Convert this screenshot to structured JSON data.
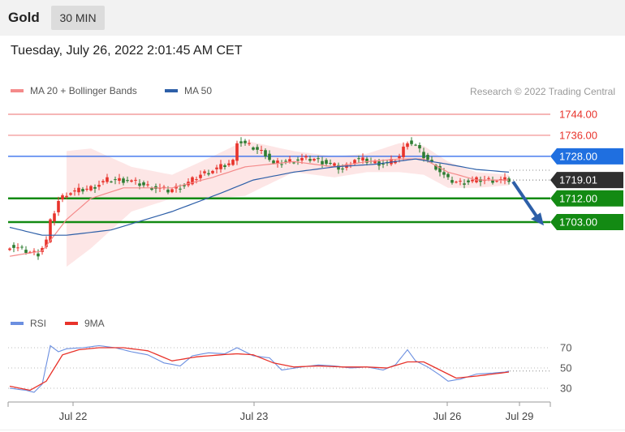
{
  "header": {
    "title": "Gold",
    "timeframe": "30 MIN"
  },
  "timestamp": "Tuesday, July 26, 2022 2:01:45 AM CET",
  "legend": {
    "ma20": {
      "label": "MA 20 + Bollinger Bands",
      "color": "#f48a8a"
    },
    "ma50": {
      "label": "MA 50",
      "color": "#2d5fa8"
    }
  },
  "copyright": "Research © 2022 Trading Central",
  "rsi_legend": {
    "rsi": {
      "label": "RSI",
      "color": "#6b8fe0"
    },
    "ma9": {
      "label": "9MA",
      "color": "#e8332b"
    }
  },
  "colors": {
    "up": "#e8332b",
    "down": "#2e7d32",
    "resistance": "#f08a8a",
    "support": "#138a13",
    "pivot": "#2563eb",
    "current": "#333333",
    "arrow": "#2d5fa8"
  },
  "levels": [
    {
      "label": "1744.00",
      "value": 1744.0,
      "type": "resistance"
    },
    {
      "label": "1736.00",
      "value": 1736.0,
      "type": "resistance"
    },
    {
      "label": "1728.00",
      "value": 1728.0,
      "type": "pivot"
    },
    {
      "label": "1719.01",
      "value": 1719.01,
      "type": "current"
    },
    {
      "label": "1712.00",
      "value": 1712.0,
      "type": "support"
    },
    {
      "label": "1703.00",
      "value": 1703.0,
      "type": "support"
    }
  ],
  "rsi_ticks": [
    "70",
    "50",
    "30"
  ],
  "chart_data": {
    "type": "candlestick",
    "title": "Gold",
    "timeframe": "30 MIN",
    "x_tick_labels": [
      "Jul 22",
      "Jul 23",
      "Jul 26",
      "Jul 29"
    ],
    "price_range": [
      1683,
      1748
    ],
    "close_anchors": [
      [
        0,
        1694
      ],
      [
        4,
        1692
      ],
      [
        7,
        1691
      ],
      [
        9,
        1696
      ],
      [
        10,
        1703
      ],
      [
        12,
        1711
      ],
      [
        14,
        1714
      ],
      [
        17,
        1715
      ],
      [
        20,
        1716
      ],
      [
        24,
        1719
      ],
      [
        29,
        1719
      ],
      [
        33,
        1717
      ],
      [
        39,
        1715
      ],
      [
        43,
        1717
      ],
      [
        47,
        1721
      ],
      [
        52,
        1724
      ],
      [
        55,
        1726
      ],
      [
        56,
        1734
      ],
      [
        59,
        1732
      ],
      [
        63,
        1729
      ],
      [
        65,
        1725
      ],
      [
        68,
        1726
      ],
      [
        72,
        1727
      ],
      [
        75,
        1727
      ],
      [
        79,
        1725
      ],
      [
        82,
        1723
      ],
      [
        85,
        1727
      ],
      [
        89,
        1726
      ],
      [
        93,
        1725
      ],
      [
        96,
        1728
      ],
      [
        98,
        1734
      ],
      [
        100,
        1732
      ],
      [
        102,
        1728
      ],
      [
        105,
        1724
      ],
      [
        108,
        1719
      ],
      [
        111,
        1718
      ],
      [
        115,
        1719
      ],
      [
        118,
        1719
      ],
      [
        121,
        1719
      ],
      [
        123,
        1719
      ]
    ],
    "ma20_anchors": [
      [
        0,
        1690
      ],
      [
        8,
        1692
      ],
      [
        14,
        1704
      ],
      [
        20,
        1712
      ],
      [
        28,
        1716
      ],
      [
        40,
        1716
      ],
      [
        50,
        1720
      ],
      [
        58,
        1724
      ],
      [
        70,
        1726
      ],
      [
        80,
        1724
      ],
      [
        88,
        1726
      ],
      [
        96,
        1727
      ],
      [
        102,
        1727
      ],
      [
        108,
        1722
      ],
      [
        115,
        1719
      ],
      [
        123,
        1719
      ]
    ],
    "bb_upper_anchors": [
      [
        14,
        1730
      ],
      [
        20,
        1731
      ],
      [
        30,
        1724
      ],
      [
        40,
        1721
      ],
      [
        50,
        1728
      ],
      [
        58,
        1734
      ],
      [
        70,
        1730
      ],
      [
        80,
        1728
      ],
      [
        88,
        1729
      ],
      [
        96,
        1733
      ],
      [
        102,
        1732
      ],
      [
        108,
        1726
      ],
      [
        115,
        1722
      ],
      [
        123,
        1721
      ]
    ],
    "bb_lower_anchors": [
      [
        14,
        1686
      ],
      [
        20,
        1693
      ],
      [
        30,
        1707
      ],
      [
        40,
        1712
      ],
      [
        50,
        1712
      ],
      [
        58,
        1713
      ],
      [
        70,
        1722
      ],
      [
        80,
        1720
      ],
      [
        88,
        1722
      ],
      [
        96,
        1722
      ],
      [
        102,
        1721
      ],
      [
        108,
        1716
      ],
      [
        115,
        1716
      ],
      [
        123,
        1717
      ]
    ],
    "ma50_anchors": [
      [
        0,
        1701
      ],
      [
        8,
        1698
      ],
      [
        14,
        1698
      ],
      [
        25,
        1700
      ],
      [
        40,
        1707
      ],
      [
        52,
        1714
      ],
      [
        60,
        1719
      ],
      [
        70,
        1722
      ],
      [
        80,
        1724
      ],
      [
        90,
        1725
      ],
      [
        100,
        1727
      ],
      [
        108,
        1725
      ],
      [
        115,
        1723
      ],
      [
        123,
        1722
      ]
    ],
    "rsi_range": [
      20,
      80
    ],
    "rsi_anchors": [
      [
        0,
        30
      ],
      [
        4,
        28
      ],
      [
        6,
        26
      ],
      [
        8,
        34
      ],
      [
        10,
        72
      ],
      [
        12,
        66
      ],
      [
        14,
        69
      ],
      [
        18,
        70
      ],
      [
        22,
        72
      ],
      [
        26,
        70
      ],
      [
        30,
        66
      ],
      [
        34,
        63
      ],
      [
        38,
        55
      ],
      [
        42,
        52
      ],
      [
        45,
        62
      ],
      [
        49,
        65
      ],
      [
        53,
        64
      ],
      [
        56,
        70
      ],
      [
        60,
        62
      ],
      [
        64,
        60
      ],
      [
        67,
        48
      ],
      [
        72,
        51
      ],
      [
        76,
        53
      ],
      [
        80,
        52
      ],
      [
        84,
        50
      ],
      [
        88,
        51
      ],
      [
        92,
        48
      ],
      [
        95,
        53
      ],
      [
        98,
        68
      ],
      [
        100,
        57
      ],
      [
        103,
        51
      ],
      [
        106,
        43
      ],
      [
        108,
        37
      ],
      [
        111,
        39
      ],
      [
        115,
        44
      ],
      [
        119,
        45
      ],
      [
        122,
        46
      ],
      [
        123,
        47
      ]
    ],
    "ma9_anchors": [
      [
        0,
        32
      ],
      [
        5,
        28
      ],
      [
        9,
        37
      ],
      [
        13,
        63
      ],
      [
        17,
        68
      ],
      [
        22,
        70
      ],
      [
        28,
        70
      ],
      [
        34,
        67
      ],
      [
        40,
        57
      ],
      [
        46,
        61
      ],
      [
        52,
        63
      ],
      [
        56,
        64
      ],
      [
        60,
        63
      ],
      [
        65,
        55
      ],
      [
        70,
        51
      ],
      [
        76,
        52
      ],
      [
        82,
        51
      ],
      [
        88,
        51
      ],
      [
        93,
        50
      ],
      [
        98,
        56
      ],
      [
        102,
        56
      ],
      [
        106,
        48
      ],
      [
        110,
        40
      ],
      [
        115,
        42
      ],
      [
        119,
        44
      ],
      [
        123,
        46
      ]
    ],
    "forecast": {
      "from": 1719,
      "to": 1706
    }
  }
}
